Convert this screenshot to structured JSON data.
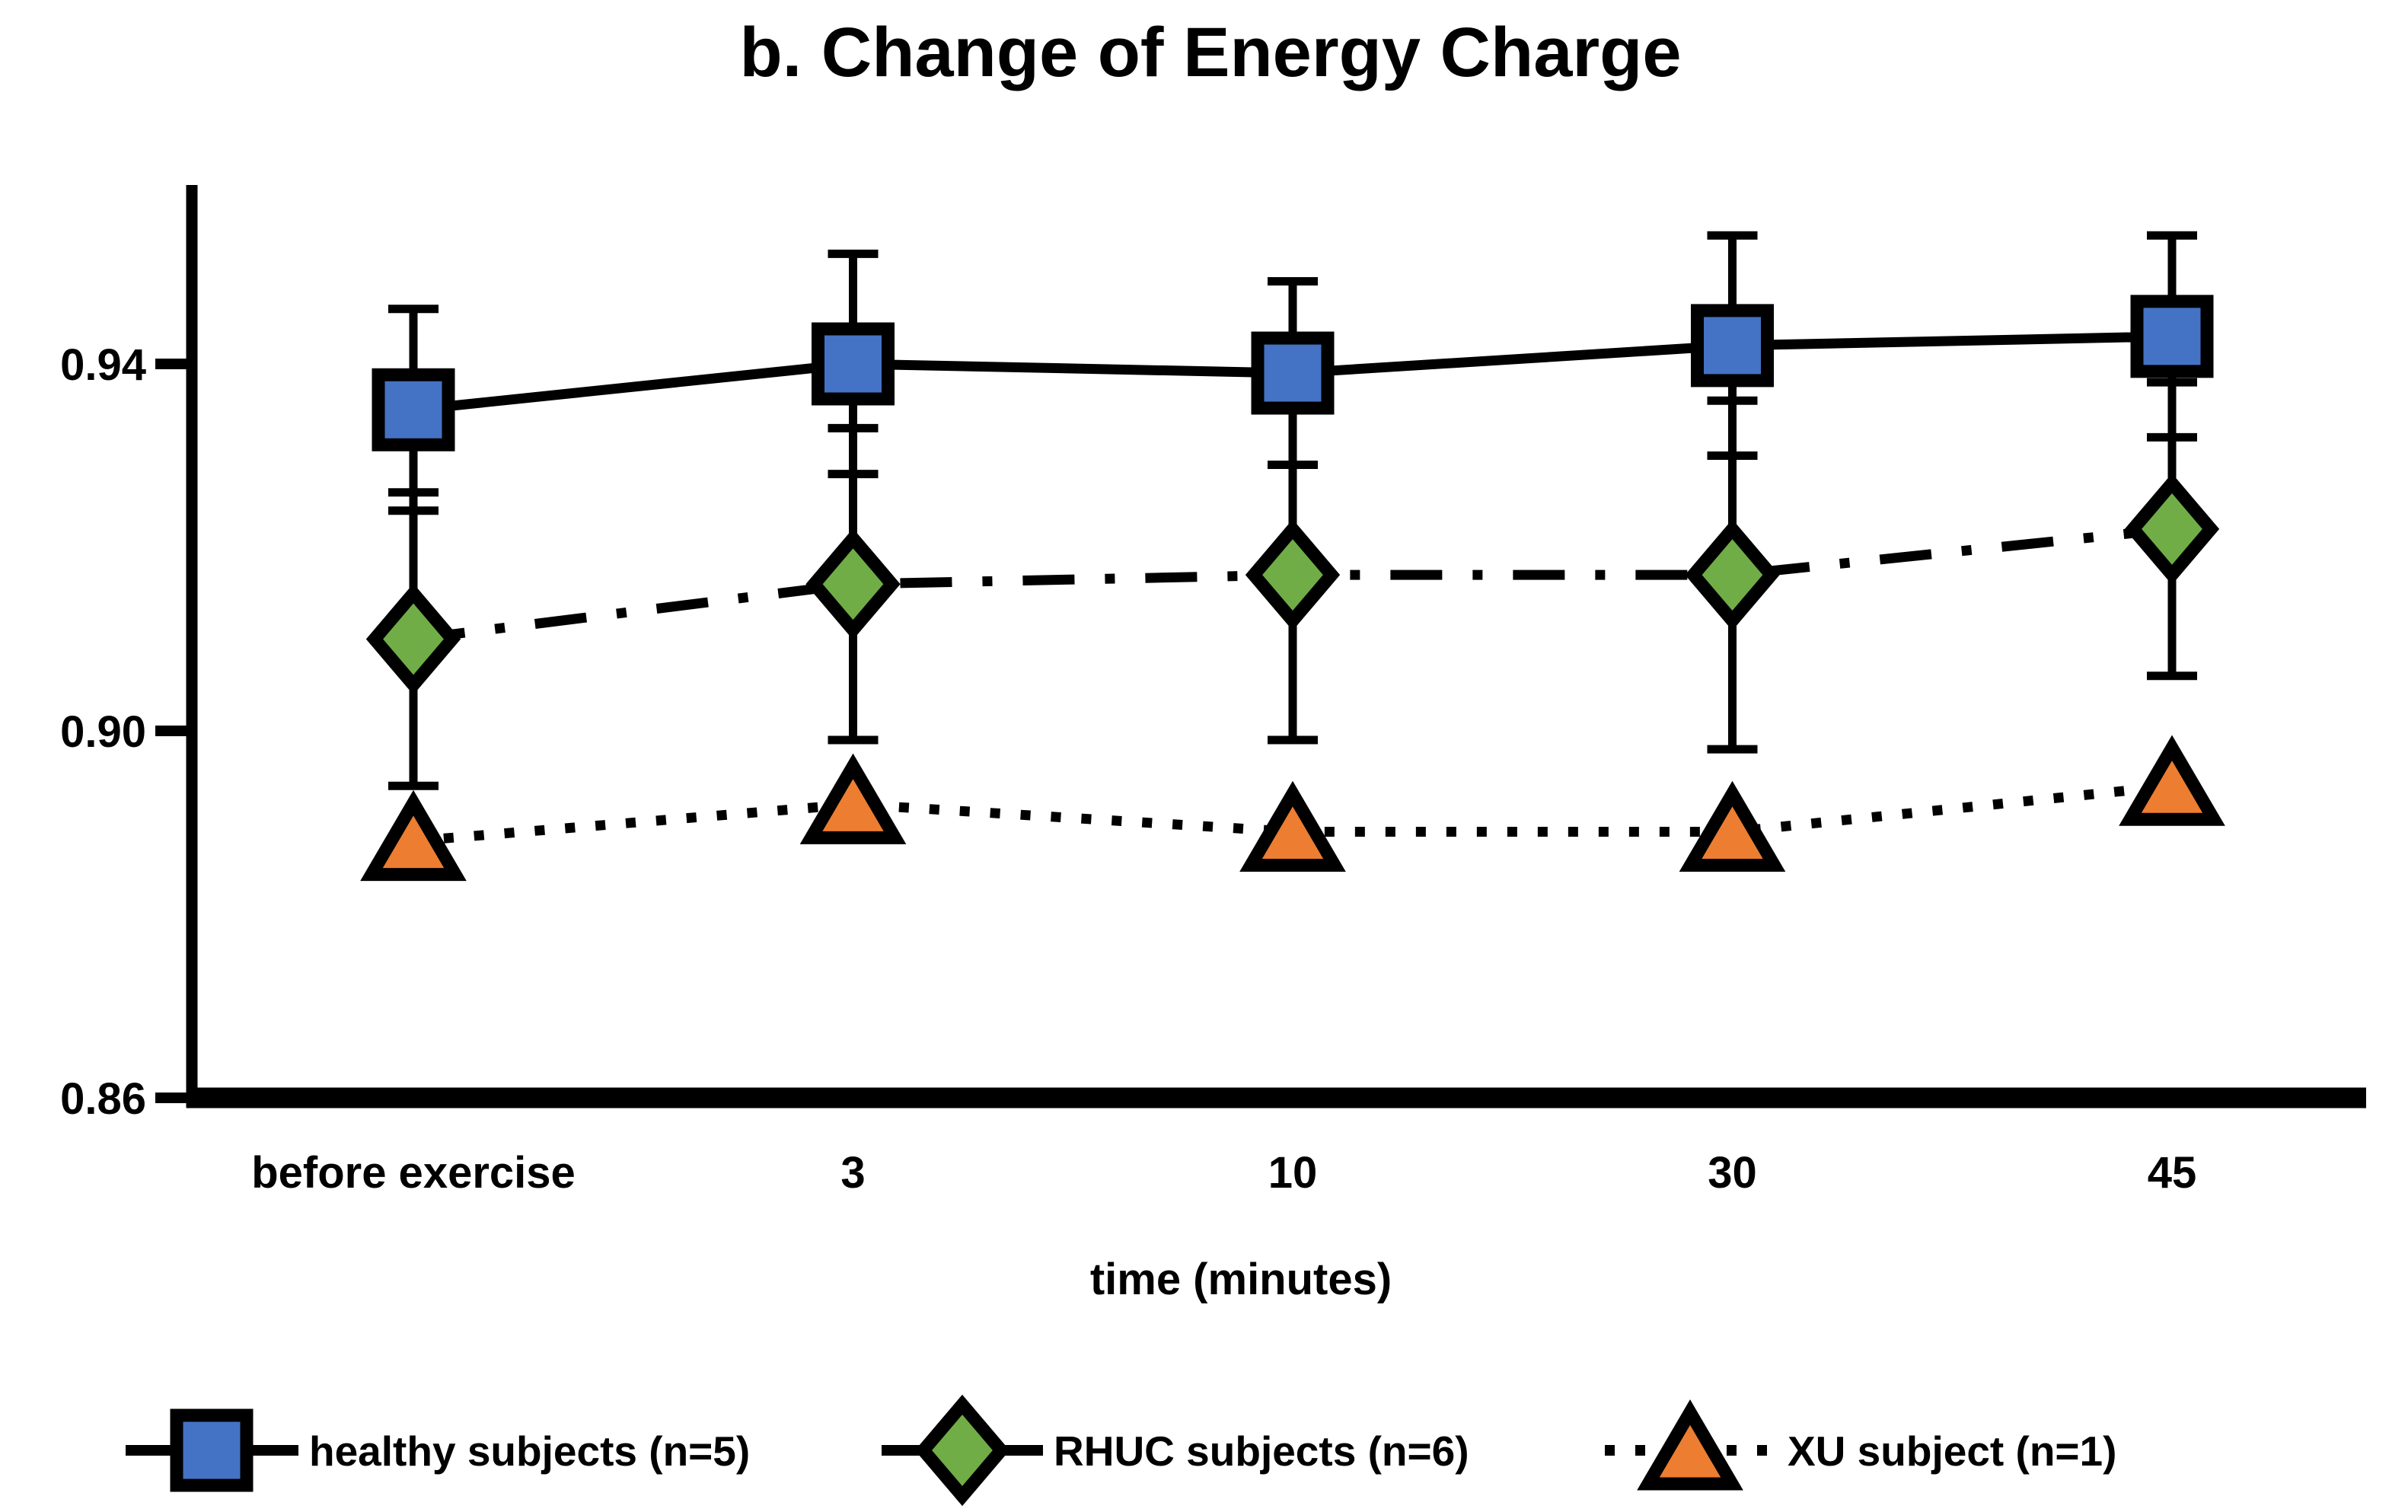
{
  "title": "b. Change of Energy Charge",
  "chart_data": {
    "type": "line",
    "title": "b. Change of Energy Charge",
    "categories": [
      "before exercise",
      "3",
      "10",
      "30",
      "45"
    ],
    "xlabel": "time (minutes)",
    "ylabel": "",
    "yticks": [
      "0.94",
      "0.90",
      "0.86"
    ],
    "ytick_values": [
      0.94,
      0.9,
      0.86
    ],
    "ylim": [
      0.86,
      0.96
    ],
    "grid": false,
    "legend_position": "bottom",
    "axis_color": "#000000",
    "background_color": "#ffffff",
    "series": [
      {
        "name": "healthy subjects (n=5)",
        "marker": "square",
        "marker_color": "#4472C4",
        "line_color": "#000000",
        "line_style": "solid",
        "values": [
          0.935,
          0.94,
          0.939,
          0.942,
          0.943
        ],
        "errors": [
          0.011,
          0.012,
          0.01,
          0.012,
          0.011
        ]
      },
      {
        "name": "RHUC subjects (n=6)",
        "marker": "diamond",
        "marker_color": "#70AD47",
        "line_color": "#000000",
        "line_style": "dash-dot",
        "values": [
          0.91,
          0.916,
          0.917,
          0.917,
          0.922
        ],
        "errors": [
          0.016,
          0.017,
          0.018,
          0.019,
          0.016
        ]
      },
      {
        "name": "XU subject (n=1)",
        "marker": "triangle",
        "marker_color": "#ED7D31",
        "line_color": "#000000",
        "line_style": "dotted",
        "values": [
          0.888,
          0.892,
          0.889,
          0.889,
          0.894
        ],
        "errors": null
      }
    ]
  }
}
